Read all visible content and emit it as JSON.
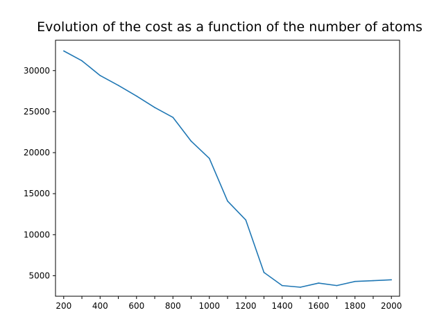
{
  "chart_data": {
    "type": "line",
    "title": "Evolution of the cost as a function of the number of atoms",
    "xlabel": "",
    "ylabel": "",
    "xlim": [
      155,
      2045
    ],
    "ylim": [
      2500,
      33700
    ],
    "xticks": [
      200,
      400,
      600,
      800,
      1000,
      1200,
      1400,
      1600,
      1800,
      2000
    ],
    "xticks_minor": [
      300,
      500,
      700,
      900,
      1100,
      1300,
      1500,
      1700,
      1900
    ],
    "yticks": [
      5000,
      10000,
      15000,
      20000,
      25000,
      30000
    ],
    "grid": false,
    "series": [
      {
        "color": "#1f77b4",
        "x": [
          200,
          300,
          400,
          500,
          600,
          700,
          800,
          900,
          1000,
          1100,
          1200,
          1300,
          1400,
          1500,
          1600,
          1700,
          1800,
          1900,
          2000
        ],
        "y": [
          32400,
          31200,
          29400,
          28200,
          26900,
          25500,
          24300,
          21400,
          19300,
          14100,
          11800,
          5400,
          3800,
          3600,
          4100,
          3800,
          4300,
          4400,
          4500
        ]
      }
    ]
  }
}
